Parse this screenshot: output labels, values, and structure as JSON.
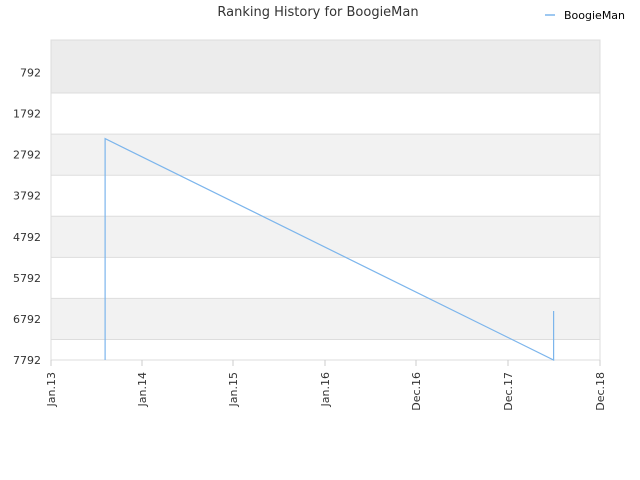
{
  "chart_data": {
    "type": "line",
    "title": "Ranking History for BoogieMan",
    "xlabel": "",
    "ylabel": "",
    "y_inverted": true,
    "ylim": [
      7792,
      0
    ],
    "y_ticks": [
      "792",
      "1792",
      "2792",
      "3792",
      "4792",
      "5792",
      "6792",
      "7792"
    ],
    "x_ticks": [
      "Jan.13",
      "Jan.14",
      "Jan.15",
      "Jan.16",
      "Dec.16",
      "Dec.17",
      "Dec.18"
    ],
    "legend": {
      "position": "top-right",
      "entries": [
        "BoogieMan"
      ]
    },
    "colors": {
      "series": "#7cb5ec",
      "band_light": "#f2f2f2",
      "band_top": "#ececec",
      "grid": "#dddddd"
    },
    "series": [
      {
        "name": "BoogieMan",
        "points": [
          {
            "x": "2013-08",
            "y": 7792
          },
          {
            "x": "2013-08",
            "y": 2400
          },
          {
            "x": "2018-06",
            "y": 7792
          },
          {
            "x": "2018-06",
            "y": 6600
          }
        ]
      }
    ]
  }
}
